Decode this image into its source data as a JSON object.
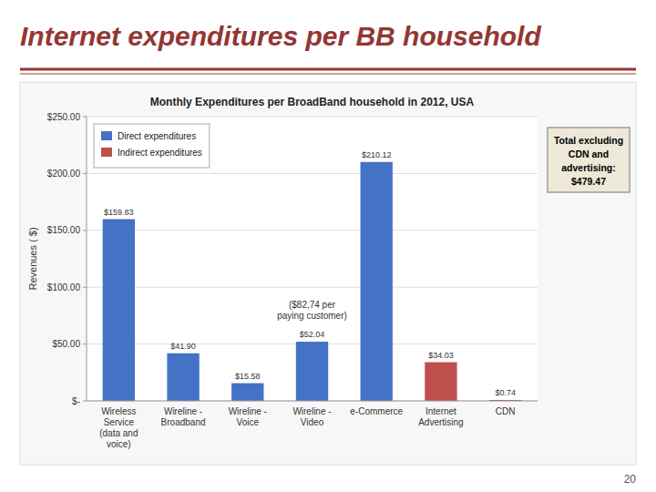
{
  "chart_data": {
    "type": "bar",
    "title": "Internet expenditures per BB household",
    "subtitle": "Monthly Expenditures per BroadBand household in 2012, USA",
    "page_number": "20",
    "categories": [
      "Wireless Service\n(data and voice)",
      "Wireline -\nBroadband",
      "Wireline - Voice",
      "Wireline - Video",
      "e-Commerce",
      "Internet Advertising",
      "CDN"
    ],
    "series": [
      {
        "name": "Direct expenditures",
        "color": "#4472C4",
        "values": [
          159.83,
          41.9,
          15.58,
          52.04,
          210.12,
          0.0,
          0.74
        ],
        "value_labels": [
          "$159.83",
          "$41.90",
          "$15.58",
          "$52.04",
          "$210.12",
          null,
          null
        ]
      },
      {
        "name": "Indirect expenditures",
        "color": "#C0504D",
        "values": [
          0,
          0,
          0,
          0,
          0,
          34.03,
          0.74
        ],
        "value_labels": [
          null,
          null,
          null,
          null,
          null,
          "$34.03",
          "$0.74"
        ]
      }
    ],
    "ylabel": "Revenues ( $)",
    "ylim": [
      0,
      250
    ],
    "yticks": [
      {
        "value": 0,
        "label": "$-"
      },
      {
        "value": 50,
        "label": "$50.00"
      },
      {
        "value": 100,
        "label": "$100.00"
      },
      {
        "value": 150,
        "label": "$150.00"
      },
      {
        "value": 200,
        "label": "$200.00"
      },
      {
        "value": 250,
        "label": "$250.00"
      }
    ],
    "annotations": [
      {
        "text": "($82,74 per\npaying customer)",
        "category": "Wireline - Video",
        "y": 80
      },
      {
        "text": "Total excluding\nCDN and\nadvertising:\n$479.47"
      }
    ],
    "grid": true,
    "legend": "upper left",
    "data_labels": true,
    "stacked": false
  }
}
